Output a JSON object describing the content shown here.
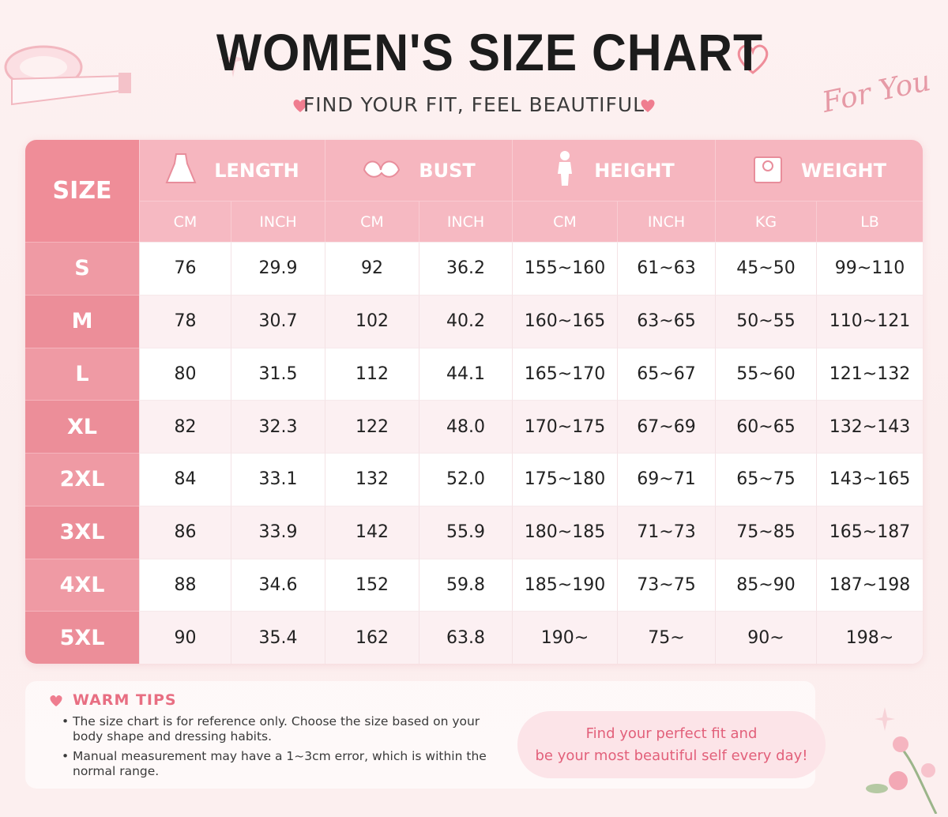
{
  "header": {
    "title": "WOMEN'S SIZE CHART",
    "subtitle": "FIND YOUR FIT, FEEL BEAUTIFUL",
    "tagline": "For You"
  },
  "table": {
    "size_header": "SIZE",
    "groups": [
      {
        "label": "LENGTH",
        "units": [
          "CM",
          "INCH"
        ]
      },
      {
        "label": "BUST",
        "units": [
          "CM",
          "INCH"
        ]
      },
      {
        "label": "HEIGHT",
        "units": [
          "CM",
          "INCH"
        ]
      },
      {
        "label": "WEIGHT",
        "units": [
          "KG",
          "LB"
        ]
      }
    ],
    "rows": [
      [
        "S",
        "76",
        "29.9",
        "92",
        "36.2",
        "155~160",
        "61~63",
        "45~50",
        "99~110"
      ],
      [
        "M",
        "78",
        "30.7",
        "102",
        "40.2",
        "160~165",
        "63~65",
        "50~55",
        "110~121"
      ],
      [
        "L",
        "80",
        "31.5",
        "112",
        "44.1",
        "165~170",
        "65~67",
        "55~60",
        "121~132"
      ],
      [
        "XL",
        "82",
        "32.3",
        "122",
        "48.0",
        "170~175",
        "67~69",
        "60~65",
        "132~143"
      ],
      [
        "2XL",
        "84",
        "33.1",
        "132",
        "52.0",
        "175~180",
        "69~71",
        "65~75",
        "143~165"
      ],
      [
        "3XL",
        "86",
        "33.9",
        "142",
        "55.9",
        "180~185",
        "71~73",
        "75~85",
        "165~187"
      ],
      [
        "4XL",
        "88",
        "34.6",
        "152",
        "59.8",
        "185~190",
        "73~75",
        "85~90",
        "187~198"
      ],
      [
        "5XL",
        "90",
        "35.4",
        "162",
        "63.8",
        "190~",
        "75~",
        "90~",
        "198~"
      ]
    ]
  },
  "tips": {
    "title": "WARM TIPS",
    "items": [
      "The size chart is for reference only.  Choose the size based on your body shape and dressing habits.",
      "Manual measurement may have a 1~3cm error, which is within the normal range."
    ]
  },
  "message": {
    "lines": [
      "Find your perfect fit and",
      "be your most beautiful self every day!"
    ]
  }
}
